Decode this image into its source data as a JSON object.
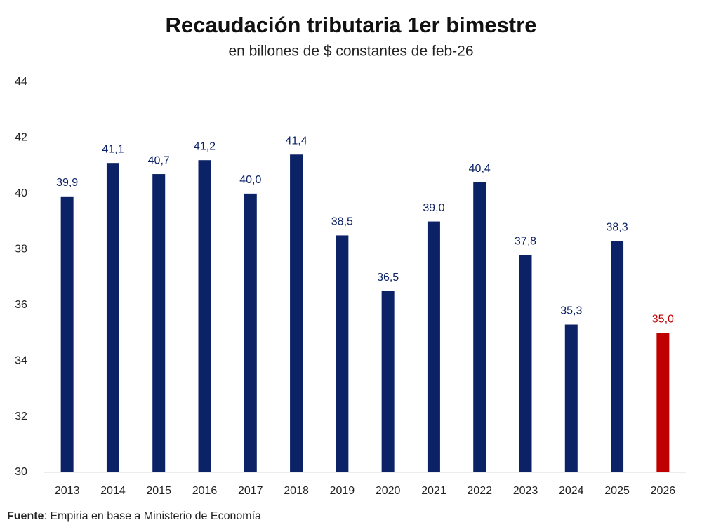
{
  "chart_data": {
    "type": "bar",
    "title": "Recaudación tributaria 1er bimestre",
    "subtitle": "en billones de $ constantes de feb-26",
    "categories": [
      "2013",
      "2014",
      "2015",
      "2016",
      "2017",
      "2018",
      "2019",
      "2020",
      "2021",
      "2022",
      "2023",
      "2024",
      "2025",
      "2026"
    ],
    "values": [
      39.9,
      41.1,
      40.7,
      41.2,
      40.0,
      41.4,
      38.5,
      36.5,
      39.0,
      40.4,
      37.8,
      35.3,
      38.3,
      35.0
    ],
    "value_labels": [
      "39,9",
      "41,1",
      "40,7",
      "41,2",
      "40,0",
      "41,4",
      "38,5",
      "36,5",
      "39,0",
      "40,4",
      "37,8",
      "35,3",
      "38,3",
      "35,0"
    ],
    "colors": [
      "#0c2266",
      "#0c2266",
      "#0c2266",
      "#0c2266",
      "#0c2266",
      "#0c2266",
      "#0c2266",
      "#0c2266",
      "#0c2266",
      "#0c2266",
      "#0c2266",
      "#0c2266",
      "#0c2266",
      "#c00000"
    ],
    "ylim": [
      30,
      44
    ],
    "yticks": [
      30,
      32,
      34,
      36,
      38,
      40,
      42,
      44
    ],
    "grid": false,
    "source_label": "Fuente",
    "source_text": ": Empiria en base a Ministerio de Economía"
  }
}
